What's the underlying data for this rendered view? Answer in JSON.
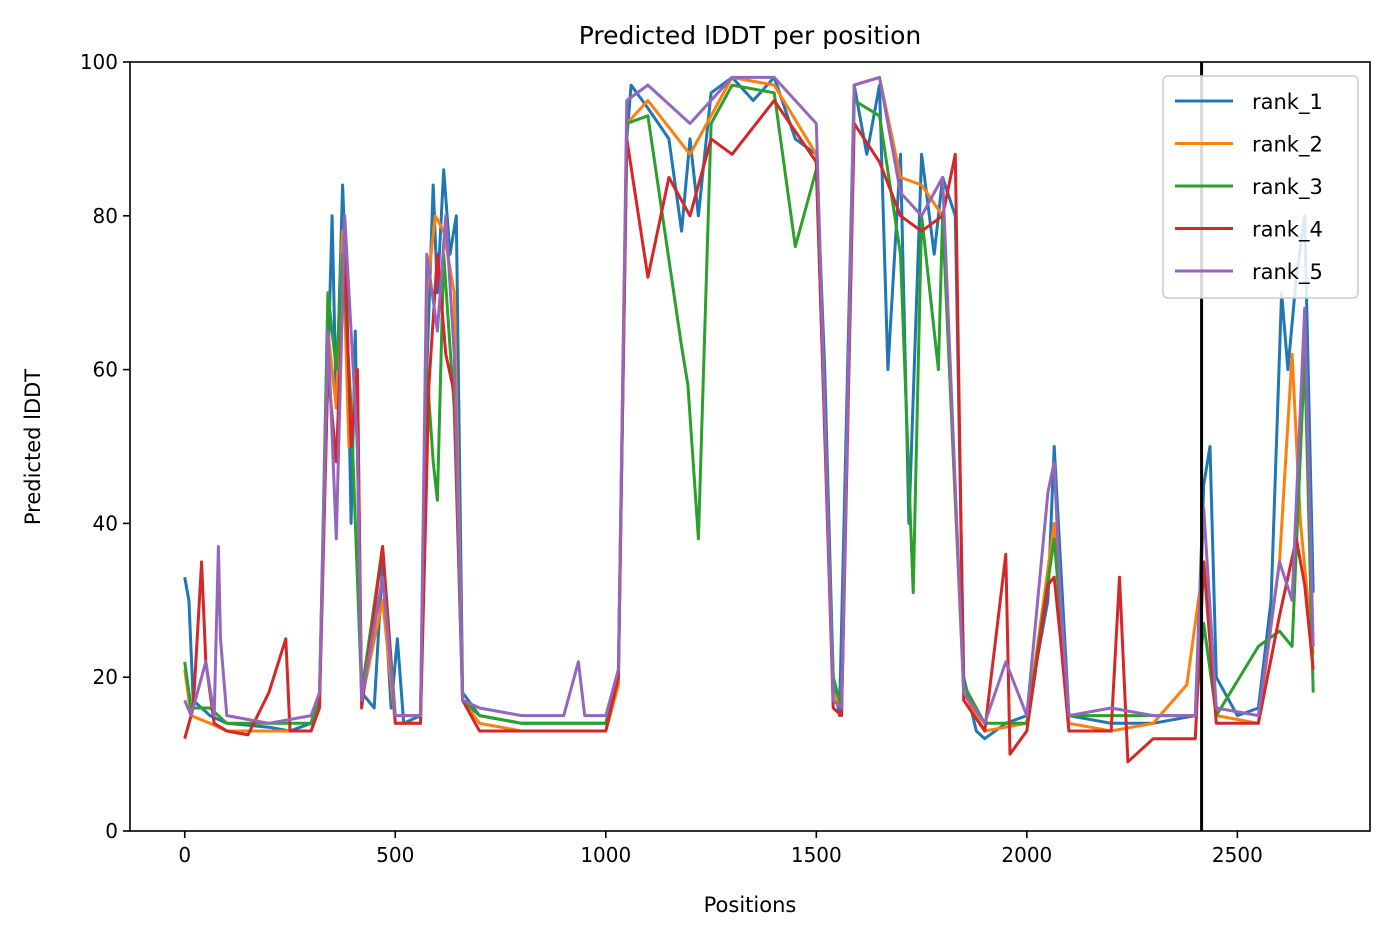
{
  "chart_data": {
    "type": "line",
    "title": "Predicted lDDT per position",
    "xlabel": "Positions",
    "ylabel": "Predicted lDDT",
    "xlim": [
      -130,
      2815
    ],
    "ylim": [
      0,
      100
    ],
    "xticks": [
      0,
      500,
      1000,
      1500,
      2000,
      2500
    ],
    "yticks": [
      0,
      20,
      40,
      60,
      80,
      100
    ],
    "vline_x": 2415,
    "legend_position": "top-right",
    "grid": false,
    "series": [
      {
        "name": "rank_1",
        "color": "#1f77b4",
        "values": [
          [
            0,
            33
          ],
          [
            10,
            30
          ],
          [
            20,
            17
          ],
          [
            60,
            15
          ],
          [
            100,
            14
          ],
          [
            200,
            13.5
          ],
          [
            250,
            13
          ],
          [
            300,
            14
          ],
          [
            320,
            18
          ],
          [
            340,
            60
          ],
          [
            350,
            80
          ],
          [
            360,
            55
          ],
          [
            375,
            84
          ],
          [
            385,
            70
          ],
          [
            395,
            40
          ],
          [
            405,
            65
          ],
          [
            420,
            18
          ],
          [
            450,
            16
          ],
          [
            470,
            35
          ],
          [
            490,
            16
          ],
          [
            505,
            25
          ],
          [
            520,
            14
          ],
          [
            560,
            15
          ],
          [
            575,
            60
          ],
          [
            590,
            84
          ],
          [
            600,
            70
          ],
          [
            615,
            86
          ],
          [
            630,
            75
          ],
          [
            645,
            80
          ],
          [
            660,
            18
          ],
          [
            700,
            15
          ],
          [
            800,
            14
          ],
          [
            900,
            14
          ],
          [
            1000,
            14
          ],
          [
            1030,
            20
          ],
          [
            1050,
            90
          ],
          [
            1060,
            97
          ],
          [
            1100,
            94
          ],
          [
            1150,
            90
          ],
          [
            1180,
            78
          ],
          [
            1200,
            90
          ],
          [
            1220,
            80
          ],
          [
            1250,
            96
          ],
          [
            1300,
            98
          ],
          [
            1350,
            95
          ],
          [
            1400,
            98
          ],
          [
            1450,
            90
          ],
          [
            1500,
            88
          ],
          [
            1520,
            60
          ],
          [
            1540,
            20
          ],
          [
            1555,
            15
          ],
          [
            1570,
            50
          ],
          [
            1590,
            97
          ],
          [
            1620,
            88
          ],
          [
            1650,
            97
          ],
          [
            1670,
            60
          ],
          [
            1700,
            88
          ],
          [
            1720,
            40
          ],
          [
            1750,
            88
          ],
          [
            1780,
            75
          ],
          [
            1800,
            85
          ],
          [
            1830,
            80
          ],
          [
            1850,
            20
          ],
          [
            1880,
            13
          ],
          [
            1900,
            12
          ],
          [
            1950,
            14
          ],
          [
            2000,
            15
          ],
          [
            2050,
            30
          ],
          [
            2065,
            50
          ],
          [
            2080,
            35
          ],
          [
            2100,
            15
          ],
          [
            2200,
            14
          ],
          [
            2300,
            14
          ],
          [
            2400,
            15
          ],
          [
            2420,
            45
          ],
          [
            2435,
            50
          ],
          [
            2450,
            20
          ],
          [
            2500,
            15
          ],
          [
            2550,
            16
          ],
          [
            2580,
            30
          ],
          [
            2605,
            70
          ],
          [
            2620,
            60
          ],
          [
            2640,
            72
          ],
          [
            2660,
            80
          ],
          [
            2680,
            31
          ]
        ]
      },
      {
        "name": "rank_2",
        "color": "#ff7f0e",
        "values": [
          [
            0,
            21
          ],
          [
            15,
            15
          ],
          [
            60,
            14
          ],
          [
            100,
            13
          ],
          [
            200,
            13
          ],
          [
            300,
            13
          ],
          [
            320,
            17
          ],
          [
            340,
            65
          ],
          [
            360,
            55
          ],
          [
            375,
            78
          ],
          [
            390,
            50
          ],
          [
            410,
            60
          ],
          [
            420,
            17
          ],
          [
            470,
            30
          ],
          [
            500,
            14
          ],
          [
            560,
            14
          ],
          [
            575,
            70
          ],
          [
            595,
            80
          ],
          [
            615,
            78
          ],
          [
            640,
            70
          ],
          [
            660,
            17
          ],
          [
            700,
            14
          ],
          [
            800,
            13
          ],
          [
            900,
            13
          ],
          [
            1000,
            13
          ],
          [
            1030,
            19
          ],
          [
            1050,
            92
          ],
          [
            1100,
            95
          ],
          [
            1200,
            88
          ],
          [
            1300,
            98
          ],
          [
            1400,
            97
          ],
          [
            1500,
            88
          ],
          [
            1540,
            18
          ],
          [
            1560,
            16
          ],
          [
            1590,
            97
          ],
          [
            1650,
            98
          ],
          [
            1700,
            85
          ],
          [
            1750,
            84
          ],
          [
            1800,
            80
          ],
          [
            1850,
            18
          ],
          [
            1900,
            13
          ],
          [
            2000,
            14
          ],
          [
            2065,
            40
          ],
          [
            2100,
            14
          ],
          [
            2200,
            13
          ],
          [
            2300,
            14
          ],
          [
            2380,
            19
          ],
          [
            2420,
            35
          ],
          [
            2450,
            15
          ],
          [
            2550,
            14
          ],
          [
            2600,
            35
          ],
          [
            2630,
            62
          ],
          [
            2650,
            40
          ],
          [
            2680,
            23
          ]
        ]
      },
      {
        "name": "rank_3",
        "color": "#2ca02c",
        "values": [
          [
            0,
            22
          ],
          [
            15,
            16
          ],
          [
            60,
            16
          ],
          [
            100,
            14
          ],
          [
            200,
            14
          ],
          [
            300,
            14
          ],
          [
            320,
            17
          ],
          [
            340,
            70
          ],
          [
            360,
            60
          ],
          [
            375,
            75
          ],
          [
            395,
            55
          ],
          [
            420,
            18
          ],
          [
            470,
            37
          ],
          [
            500,
            15
          ],
          [
            560,
            15
          ],
          [
            575,
            60
          ],
          [
            590,
            48
          ],
          [
            600,
            43
          ],
          [
            615,
            75
          ],
          [
            640,
            55
          ],
          [
            660,
            17
          ],
          [
            700,
            15
          ],
          [
            800,
            14
          ],
          [
            900,
            14
          ],
          [
            1000,
            14
          ],
          [
            1030,
            21
          ],
          [
            1050,
            92
          ],
          [
            1100,
            93
          ],
          [
            1180,
            63
          ],
          [
            1195,
            58
          ],
          [
            1220,
            38
          ],
          [
            1250,
            92
          ],
          [
            1300,
            97
          ],
          [
            1400,
            96
          ],
          [
            1450,
            76
          ],
          [
            1500,
            86
          ],
          [
            1540,
            20
          ],
          [
            1560,
            16
          ],
          [
            1590,
            95
          ],
          [
            1650,
            93
          ],
          [
            1700,
            75
          ],
          [
            1730,
            31
          ],
          [
            1750,
            80
          ],
          [
            1790,
            60
          ],
          [
            1800,
            80
          ],
          [
            1850,
            19
          ],
          [
            1900,
            14
          ],
          [
            2000,
            14
          ],
          [
            2065,
            38
          ],
          [
            2100,
            15
          ],
          [
            2200,
            15
          ],
          [
            2300,
            15
          ],
          [
            2400,
            15
          ],
          [
            2420,
            27
          ],
          [
            2450,
            15
          ],
          [
            2550,
            24
          ],
          [
            2600,
            26
          ],
          [
            2630,
            24
          ],
          [
            2660,
            62
          ],
          [
            2680,
            18
          ]
        ]
      },
      {
        "name": "rank_4",
        "color": "#d62728",
        "values": [
          [
            0,
            12
          ],
          [
            20,
            16
          ],
          [
            40,
            35
          ],
          [
            50,
            22
          ],
          [
            70,
            14
          ],
          [
            100,
            13
          ],
          [
            150,
            12.5
          ],
          [
            200,
            18
          ],
          [
            240,
            25
          ],
          [
            250,
            13
          ],
          [
            300,
            13
          ],
          [
            320,
            16
          ],
          [
            340,
            60
          ],
          [
            360,
            48
          ],
          [
            380,
            76
          ],
          [
            395,
            50
          ],
          [
            410,
            60
          ],
          [
            420,
            16
          ],
          [
            470,
            37
          ],
          [
            500,
            14
          ],
          [
            560,
            14
          ],
          [
            580,
            58
          ],
          [
            600,
            75
          ],
          [
            620,
            62
          ],
          [
            640,
            57
          ],
          [
            660,
            17
          ],
          [
            700,
            13
          ],
          [
            800,
            13
          ],
          [
            900,
            13
          ],
          [
            1000,
            13
          ],
          [
            1030,
            20
          ],
          [
            1050,
            90
          ],
          [
            1100,
            72
          ],
          [
            1150,
            85
          ],
          [
            1200,
            80
          ],
          [
            1250,
            90
          ],
          [
            1300,
            88
          ],
          [
            1400,
            95
          ],
          [
            1500,
            87
          ],
          [
            1540,
            16
          ],
          [
            1560,
            15
          ],
          [
            1590,
            92
          ],
          [
            1650,
            87
          ],
          [
            1700,
            80
          ],
          [
            1750,
            78
          ],
          [
            1800,
            80
          ],
          [
            1830,
            88
          ],
          [
            1850,
            17
          ],
          [
            1900,
            13
          ],
          [
            1950,
            36
          ],
          [
            1960,
            10
          ],
          [
            2000,
            13
          ],
          [
            2050,
            32
          ],
          [
            2065,
            33
          ],
          [
            2080,
            25
          ],
          [
            2100,
            13
          ],
          [
            2200,
            13
          ],
          [
            2220,
            33
          ],
          [
            2240,
            9
          ],
          [
            2300,
            12
          ],
          [
            2400,
            12
          ],
          [
            2420,
            35
          ],
          [
            2450,
            14
          ],
          [
            2550,
            14
          ],
          [
            2600,
            28
          ],
          [
            2640,
            38
          ],
          [
            2660,
            32
          ],
          [
            2680,
            21
          ]
        ]
      },
      {
        "name": "rank_5",
        "color": "#9467bd",
        "values": [
          [
            0,
            17
          ],
          [
            15,
            15
          ],
          [
            50,
            22
          ],
          [
            70,
            15
          ],
          [
            80,
            37
          ],
          [
            85,
            25
          ],
          [
            100,
            15
          ],
          [
            200,
            14
          ],
          [
            300,
            15
          ],
          [
            320,
            18
          ],
          [
            340,
            65
          ],
          [
            360,
            38
          ],
          [
            380,
            80
          ],
          [
            395,
            65
          ],
          [
            410,
            50
          ],
          [
            420,
            17
          ],
          [
            470,
            33
          ],
          [
            500,
            15
          ],
          [
            560,
            15
          ],
          [
            575,
            75
          ],
          [
            600,
            65
          ],
          [
            620,
            80
          ],
          [
            640,
            62
          ],
          [
            660,
            17
          ],
          [
            700,
            16
          ],
          [
            800,
            15
          ],
          [
            900,
            15
          ],
          [
            935,
            22
          ],
          [
            950,
            15
          ],
          [
            1000,
            15
          ],
          [
            1030,
            21
          ],
          [
            1050,
            95
          ],
          [
            1100,
            97
          ],
          [
            1200,
            92
          ],
          [
            1300,
            98
          ],
          [
            1400,
            98
          ],
          [
            1500,
            92
          ],
          [
            1540,
            17
          ],
          [
            1560,
            16
          ],
          [
            1590,
            97
          ],
          [
            1650,
            98
          ],
          [
            1700,
            83
          ],
          [
            1750,
            80
          ],
          [
            1800,
            85
          ],
          [
            1850,
            18
          ],
          [
            1900,
            14
          ],
          [
            1950,
            22
          ],
          [
            2000,
            15
          ],
          [
            2050,
            44
          ],
          [
            2065,
            48
          ],
          [
            2080,
            30
          ],
          [
            2100,
            15
          ],
          [
            2200,
            16
          ],
          [
            2300,
            15
          ],
          [
            2400,
            15
          ],
          [
            2420,
            42
          ],
          [
            2450,
            16
          ],
          [
            2550,
            15
          ],
          [
            2600,
            35
          ],
          [
            2630,
            30
          ],
          [
            2660,
            68
          ],
          [
            2680,
            24
          ]
        ]
      }
    ]
  }
}
